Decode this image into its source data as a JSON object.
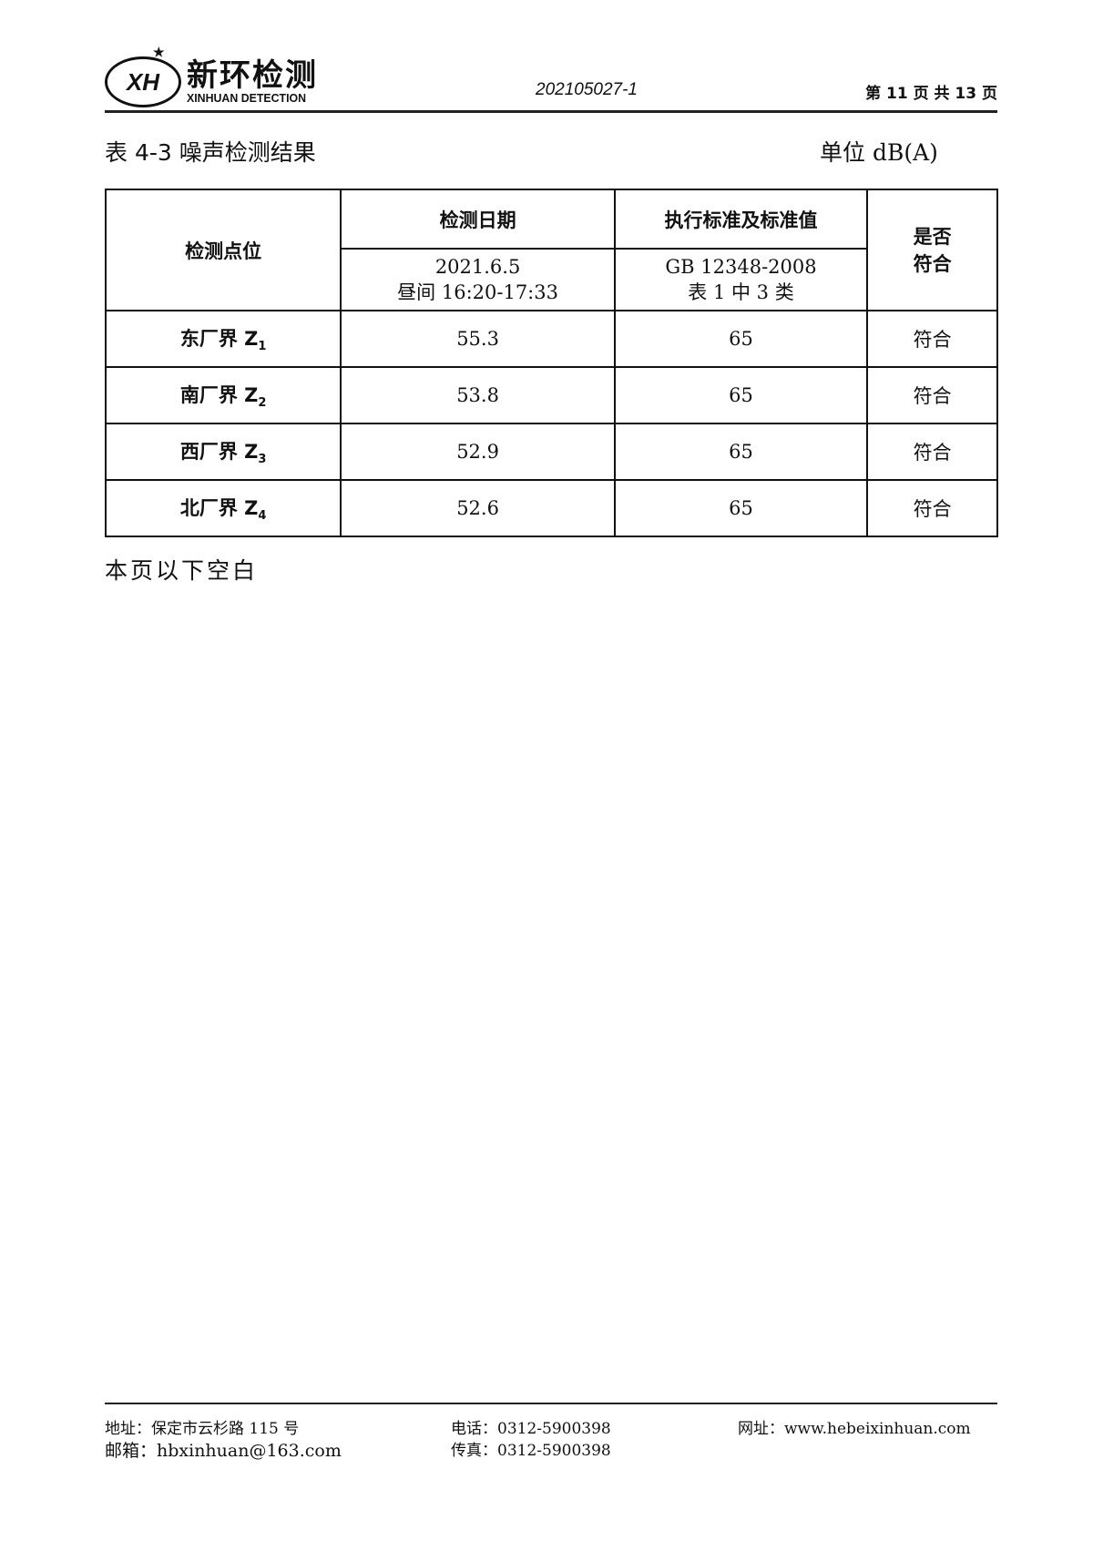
{
  "header": {
    "logo_mark": "XH",
    "logo_cn": "新环检测",
    "logo_en": "XINHUAN DETECTION",
    "report_no": "202105027-1",
    "page_info": "第 11 页 共 13 页"
  },
  "table_title": "表 4-3 噪声检测结果",
  "unit": "单位 dB(A)",
  "table": {
    "col_point": "检测点位",
    "col_date": "检测日期",
    "date_value": "2021.6.5",
    "date_time": "昼间 16:20-17:33",
    "col_standard": "执行标准及标准值",
    "standard_value": "GB 12348-2008",
    "standard_class": "表 1 中 3 类",
    "col_comply": "是否符合",
    "rows": [
      {
        "point": "东厂界 Z",
        "sub": "1",
        "value": "55.3",
        "limit": "65",
        "result": "符合"
      },
      {
        "point": "南厂界 Z",
        "sub": "2",
        "value": "53.8",
        "limit": "65",
        "result": "符合"
      },
      {
        "point": "西厂界 Z",
        "sub": "3",
        "value": "52.9",
        "limit": "65",
        "result": "符合"
      },
      {
        "point": "北厂界 Z",
        "sub": "4",
        "value": "52.6",
        "limit": "65",
        "result": "符合"
      }
    ]
  },
  "blank_note": "本页以下空白",
  "footer": {
    "address": "地址：保定市云杉路 115 号",
    "phone": "电话：0312-5900398",
    "website": "网址：www.hebeixinhuan.com",
    "email": "邮箱：hbxinhuan@163.com",
    "fax": "传真：0312-5900398"
  }
}
